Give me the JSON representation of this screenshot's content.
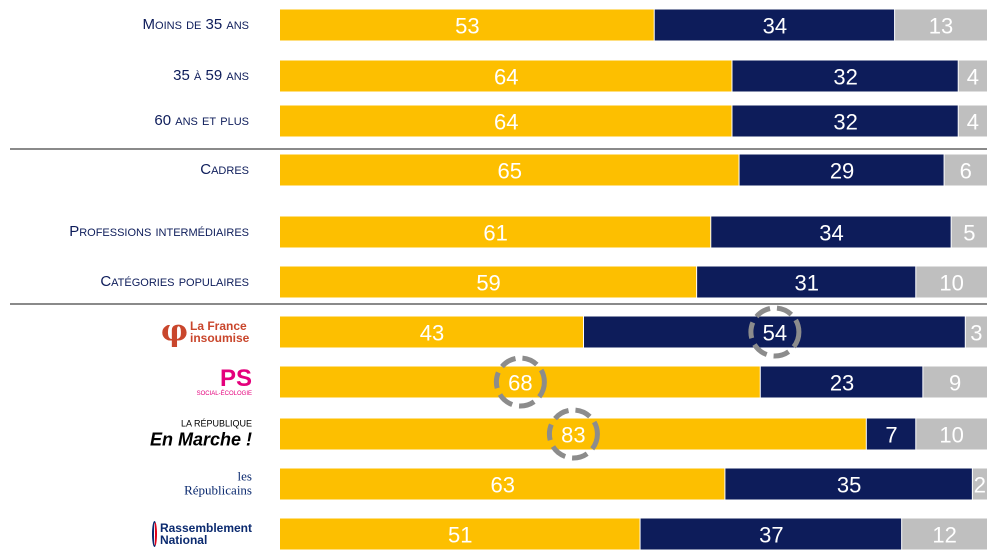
{
  "chart_data": {
    "type": "stacked-bar-horizontal",
    "categories": [
      "Moins de 35 ans",
      "35 à 59 ans",
      "60 ans et plus",
      "Cadres",
      "Professions intermédiaires",
      "Catégories populaires",
      "La France insoumise",
      "PS",
      "En Marche !",
      "les Républicains",
      "Rassemblement National"
    ],
    "logo_subtexts": [
      null,
      null,
      null,
      null,
      null,
      null,
      null,
      "SOCIAL-ÉCOLOGIE",
      "LA RÉPUBLIQUE",
      null,
      null
    ],
    "series": [
      {
        "color": "#fdbf00",
        "values": [
          53,
          64,
          64,
          65,
          61,
          59,
          43,
          68,
          83,
          63,
          51
        ]
      },
      {
        "color": "#0d1c5a",
        "values": [
          34,
          32,
          32,
          29,
          34,
          31,
          54,
          23,
          7,
          35,
          37
        ]
      },
      {
        "color": "#bfbfbf",
        "values": [
          13,
          4,
          4,
          6,
          5,
          10,
          3,
          9,
          10,
          2,
          12
        ]
      }
    ],
    "xlim": [
      0,
      100
    ],
    "highlight": [
      null,
      null,
      null,
      null,
      null,
      null,
      1,
      0,
      0,
      null,
      null
    ]
  }
}
